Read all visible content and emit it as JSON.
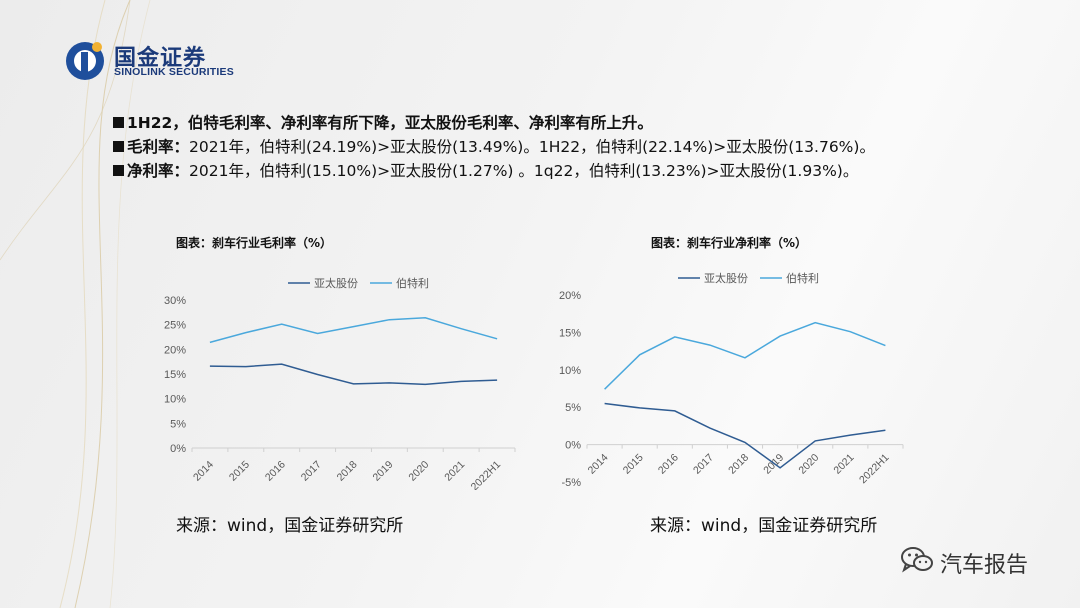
{
  "header": {
    "logo_cn": "国金证券",
    "logo_en": "SINOLINK SECURITIES"
  },
  "bullets": [
    {
      "head": "1H22，伯特毛利率、净利率有所下降，亚太股份毛利率、净利率有所上升。",
      "body": ""
    },
    {
      "head": "毛利率：",
      "body": "2021年，伯特利(24.19%)>亚太股份(13.49%)。1H22，伯特利(22.14%)>亚太股份(13.76%)。"
    },
    {
      "head": "净利率：",
      "body": "2021年，伯特利(15.10%)>亚太股份(1.27%) 。1q22，伯特利(13.23%)>亚太股份(1.93%)。"
    }
  ],
  "colors": {
    "yatai": "#2f5c92",
    "bote": "#4aa8dc",
    "text": "#111111",
    "axis": "#d0d0d0",
    "tick": "#595959"
  },
  "chart_data": [
    {
      "type": "line",
      "title": "图表：刹车行业毛利率（%）",
      "categories": [
        "2014",
        "2015",
        "2016",
        "2017",
        "2018",
        "2019",
        "2020",
        "2021",
        "2022H1"
      ],
      "series": [
        {
          "name": "亚太股份",
          "values": [
            16.6,
            16.5,
            17.0,
            14.9,
            13.0,
            13.2,
            12.9,
            13.49,
            13.76
          ]
        },
        {
          "name": "伯特利",
          "values": [
            21.4,
            23.4,
            25.1,
            23.2,
            24.6,
            26.0,
            26.4,
            24.19,
            22.14
          ]
        }
      ],
      "yticks": [
        "30%",
        "25%",
        "20%",
        "15%",
        "10%",
        "5%",
        "0%"
      ],
      "ylim": [
        0,
        30
      ],
      "legend": "top",
      "grid": false,
      "source": "来源：wind，国金证券研究所"
    },
    {
      "type": "line",
      "title": "图表：刹车行业净利率（%）",
      "categories": [
        "2014",
        "2015",
        "2016",
        "2017",
        "2018",
        "2019",
        "2020",
        "2021",
        "2022H1"
      ],
      "series": [
        {
          "name": "亚太股份",
          "values": [
            5.5,
            4.9,
            4.5,
            2.2,
            0.3,
            -3.1,
            0.5,
            1.27,
            1.93
          ]
        },
        {
          "name": "伯特利",
          "values": [
            7.4,
            12.0,
            14.4,
            13.3,
            11.6,
            14.5,
            16.3,
            15.1,
            13.23
          ]
        }
      ],
      "yticks": [
        "20%",
        "15%",
        "10%",
        "5%",
        "0%",
        "-5%"
      ],
      "ylim": [
        -5,
        20
      ],
      "legend": "top",
      "grid": false,
      "source": "来源：wind，国金证券研究所"
    }
  ],
  "watermark": {
    "icon": "wechat-icon",
    "text": "汽车报告"
  }
}
